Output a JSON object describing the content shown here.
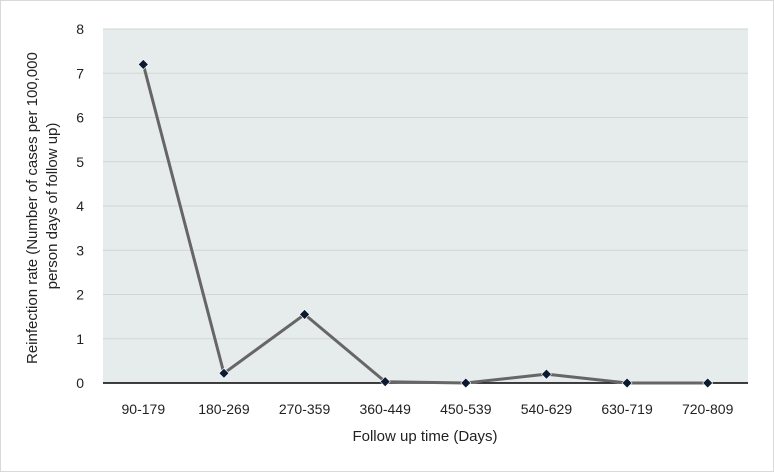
{
  "chart_data": {
    "type": "line",
    "categories": [
      "90-179",
      "180-269",
      "270-359",
      "360-449",
      "450-539",
      "540-629",
      "630-719",
      "720-809"
    ],
    "series": [
      {
        "values": [
          7.2,
          0.22,
          1.55,
          0.03,
          0.0,
          0.2,
          0.0,
          0.0
        ]
      }
    ],
    "xlabel": "Follow up time (Days)",
    "ylabel_lines": [
      "Reinfection rate (Number of cases per 100,000",
      "person days of follow up)"
    ],
    "ylim": [
      0,
      8
    ],
    "yticks": [
      0,
      1,
      2,
      3,
      4,
      5,
      6,
      7,
      8
    ],
    "grid": true,
    "colors": {
      "plot_background": "#e6ebeb",
      "gridline": "#d2d6d6",
      "line": "#666666",
      "marker": "#0b1a33",
      "axis": "#000000",
      "outer_border": "#d9d9d9"
    }
  }
}
